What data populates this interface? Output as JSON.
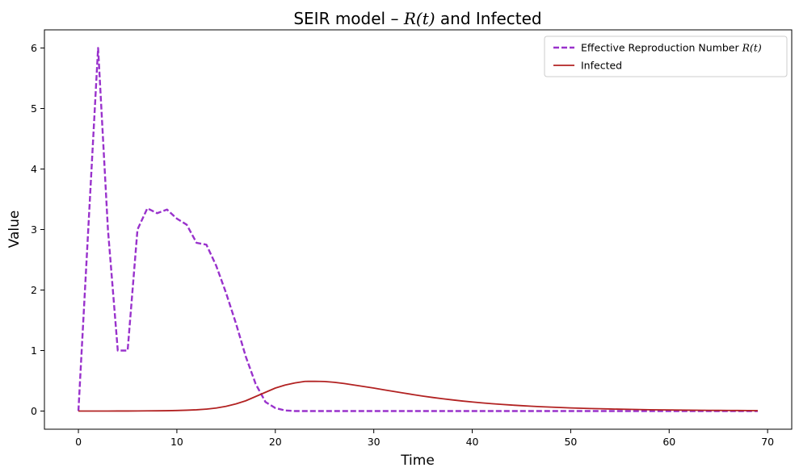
{
  "chart_data": {
    "type": "line",
    "title": "SEIR model – R(t) and Infected",
    "title_parts": {
      "prefix": "SEIR model – ",
      "math": "R(t)",
      "suffix": " and Infected"
    },
    "xlabel": "Time",
    "ylabel": "Value",
    "xlim": [
      -3.45,
      72.45
    ],
    "ylim": [
      -0.3,
      6.3
    ],
    "xticks": [
      0,
      10,
      20,
      30,
      40,
      50,
      60,
      70
    ],
    "yticks": [
      0,
      1,
      2,
      3,
      4,
      5,
      6
    ],
    "grid": false,
    "legend_position": "top-right",
    "series": [
      {
        "name": "Effective Reproduction Number R(t)",
        "legend_parts": {
          "prefix": "Effective Reproduction Number ",
          "math": "R(t)"
        },
        "color": "#9932CC",
        "style": "dashed",
        "x": [
          0,
          1,
          2,
          3,
          4,
          5,
          6,
          7,
          8,
          9,
          10,
          11,
          12,
          13,
          14,
          15,
          16,
          17,
          18,
          19,
          20,
          21,
          22,
          23,
          24,
          25,
          26,
          27,
          28,
          29,
          30,
          31,
          32,
          33,
          34,
          35,
          36,
          37,
          38,
          39,
          40,
          41,
          42,
          43,
          44,
          45,
          46,
          47,
          48,
          49,
          50,
          51,
          52,
          53,
          54,
          55,
          56,
          57,
          58,
          59,
          60,
          61,
          62,
          63,
          64,
          65,
          66,
          67,
          68,
          69
        ],
        "y": [
          0,
          3,
          6,
          3,
          1,
          1,
          3,
          3.35,
          3.27,
          3.33,
          3.18,
          3.08,
          2.78,
          2.75,
          2.4,
          1.95,
          1.45,
          0.9,
          0.45,
          0.15,
          0.05,
          0.01,
          0,
          0,
          0,
          0,
          0,
          0,
          0,
          0,
          0,
          0,
          0,
          0,
          0,
          0,
          0,
          0,
          0,
          0,
          0,
          0,
          0,
          0,
          0,
          0,
          0,
          0,
          0,
          0,
          0,
          0,
          0,
          0,
          0,
          0,
          0,
          0,
          0,
          0,
          0,
          0,
          0,
          0,
          0,
          0,
          0,
          0,
          0,
          0
        ]
      },
      {
        "name": "Infected",
        "color": "#B22222",
        "style": "solid",
        "x": [
          0,
          1,
          2,
          3,
          4,
          5,
          6,
          7,
          8,
          9,
          10,
          11,
          12,
          13,
          14,
          15,
          16,
          17,
          18,
          19,
          20,
          21,
          22,
          23,
          24,
          25,
          26,
          27,
          28,
          29,
          30,
          31,
          32,
          33,
          34,
          35,
          36,
          37,
          38,
          39,
          40,
          41,
          42,
          43,
          44,
          45,
          46,
          47,
          48,
          49,
          50,
          51,
          52,
          53,
          54,
          55,
          56,
          57,
          58,
          59,
          60,
          61,
          62,
          63,
          64,
          65,
          66,
          67,
          68,
          69
        ],
        "y": [
          0,
          0,
          0,
          0,
          0.001,
          0.001,
          0.002,
          0.003,
          0.004,
          0.006,
          0.009,
          0.014,
          0.021,
          0.032,
          0.05,
          0.078,
          0.118,
          0.17,
          0.24,
          0.31,
          0.38,
          0.43,
          0.465,
          0.49,
          0.492,
          0.488,
          0.475,
          0.455,
          0.43,
          0.405,
          0.38,
          0.352,
          0.325,
          0.298,
          0.272,
          0.247,
          0.224,
          0.203,
          0.184,
          0.166,
          0.15,
          0.135,
          0.122,
          0.11,
          0.099,
          0.089,
          0.08,
          0.072,
          0.065,
          0.058,
          0.052,
          0.047,
          0.042,
          0.038,
          0.034,
          0.031,
          0.028,
          0.025,
          0.022,
          0.02,
          0.018,
          0.016,
          0.014,
          0.013,
          0.012,
          0.011,
          0.01,
          0.009,
          0.008,
          0.007
        ]
      }
    ]
  }
}
